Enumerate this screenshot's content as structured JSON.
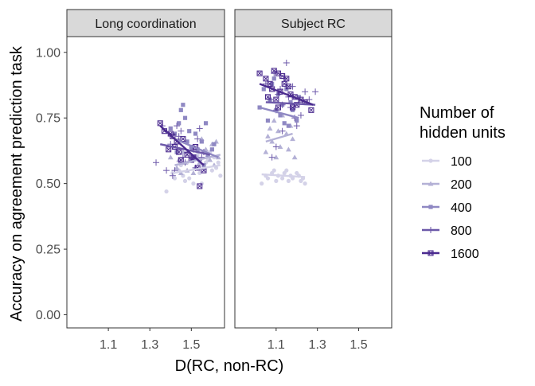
{
  "chart_data": {
    "type": "scatter",
    "ylabel": "Accuracy on agreement prediction task",
    "xlabel": "D(RC, non-RC)",
    "ylim": [
      -0.05,
      1.06
    ],
    "xlim": [
      0.9,
      1.66
    ],
    "yticks": [
      "0.00",
      "0.25",
      "0.50",
      "0.75",
      "1.00"
    ],
    "xticks": [
      "1.1",
      "1.3",
      "1.5"
    ],
    "grid": false,
    "legend_position": "right",
    "legend_title": [
      "Number of",
      "hidden units"
    ],
    "series_meta": [
      {
        "name": "100",
        "color": "#d4d2e8",
        "marker": "circle"
      },
      {
        "name": "200",
        "color": "#b4b1d6",
        "marker": "triangle"
      },
      {
        "name": "400",
        "color": "#8f88c3",
        "marker": "square"
      },
      {
        "name": "800",
        "color": "#6c58a9",
        "marker": "plus"
      },
      {
        "name": "1600",
        "color": "#4b2b8f",
        "marker": "boxed-x"
      }
    ],
    "panels": [
      {
        "title": "Long coordination",
        "series": [
          {
            "name": "100",
            "points": [
              [
                1.38,
                0.47
              ],
              [
                1.42,
                0.52
              ],
              [
                1.44,
                0.55
              ],
              [
                1.45,
                0.57
              ],
              [
                1.46,
                0.53
              ],
              [
                1.48,
                0.58
              ],
              [
                1.49,
                0.52
              ],
              [
                1.51,
                0.5
              ],
              [
                1.52,
                0.56
              ],
              [
                1.54,
                0.54
              ],
              [
                1.55,
                0.5
              ],
              [
                1.57,
                0.58
              ],
              [
                1.58,
                0.59
              ],
              [
                1.6,
                0.55
              ],
              [
                1.61,
                0.6
              ],
              [
                1.62,
                0.56
              ],
              [
                1.64,
                0.53
              ],
              [
                1.41,
                0.54
              ],
              [
                1.53,
                0.61
              ],
              [
                1.5,
                0.59
              ],
              [
                1.59,
                0.62
              ],
              [
                1.47,
                0.51
              ],
              [
                1.56,
                0.57
              ],
              [
                1.63,
                0.58
              ]
            ],
            "fit": [
              [
                1.41,
                0.54
              ],
              [
                1.64,
                0.57
              ]
            ]
          },
          {
            "name": "200",
            "points": [
              [
                1.4,
                0.6
              ],
              [
                1.43,
                0.56
              ],
              [
                1.45,
                0.54
              ],
              [
                1.46,
                0.62
              ],
              [
                1.48,
                0.55
              ],
              [
                1.5,
                0.59
              ],
              [
                1.51,
                0.54
              ],
              [
                1.53,
                0.6
              ],
              [
                1.54,
                0.58
              ],
              [
                1.56,
                0.56
              ],
              [
                1.57,
                0.63
              ],
              [
                1.58,
                0.61
              ],
              [
                1.6,
                0.65
              ],
              [
                1.61,
                0.57
              ],
              [
                1.62,
                0.66
              ],
              [
                1.63,
                0.6
              ],
              [
                1.55,
                0.67
              ],
              [
                1.59,
                0.59
              ],
              [
                1.47,
                0.58
              ],
              [
                1.44,
                0.59
              ]
            ],
            "fit": [
              [
                1.42,
                0.57
              ],
              [
                1.64,
                0.61
              ]
            ]
          },
          {
            "name": "400",
            "points": [
              [
                1.4,
                0.71
              ],
              [
                1.42,
                0.69
              ],
              [
                1.44,
                0.73
              ],
              [
                1.45,
                0.78
              ],
              [
                1.47,
                0.75
              ],
              [
                1.48,
                0.66
              ],
              [
                1.49,
                0.7
              ],
              [
                1.5,
                0.64
              ],
              [
                1.51,
                0.6
              ],
              [
                1.52,
                0.69
              ],
              [
                1.53,
                0.63
              ],
              [
                1.54,
                0.59
              ],
              [
                1.55,
                0.66
              ],
              [
                1.57,
                0.73
              ],
              [
                1.58,
                0.61
              ],
              [
                1.6,
                0.63
              ],
              [
                1.61,
                0.65
              ],
              [
                1.46,
                0.8
              ],
              [
                1.43,
                0.62
              ],
              [
                1.56,
                0.57
              ]
            ],
            "fit": [
              [
                1.42,
                0.67
              ],
              [
                1.63,
                0.6
              ]
            ]
          },
          {
            "name": "800",
            "points": [
              [
                1.33,
                0.58
              ],
              [
                1.36,
                0.72
              ],
              [
                1.38,
                0.55
              ],
              [
                1.4,
                0.65
              ],
              [
                1.42,
                0.55
              ],
              [
                1.43,
                0.72
              ],
              [
                1.44,
                0.68
              ],
              [
                1.46,
                0.6
              ],
              [
                1.47,
                0.58
              ],
              [
                1.48,
                0.62
              ],
              [
                1.5,
                0.6
              ],
              [
                1.52,
                0.56
              ],
              [
                1.53,
                0.67
              ],
              [
                1.54,
                0.71
              ],
              [
                1.55,
                0.6
              ],
              [
                1.56,
                0.62
              ],
              [
                1.45,
                0.7
              ],
              [
                1.41,
                0.53
              ],
              [
                1.51,
                0.63
              ]
            ],
            "fit": [
              [
                1.35,
                0.65
              ],
              [
                1.59,
                0.61
              ]
            ]
          },
          {
            "name": "1600",
            "points": [
              [
                1.35,
                0.73
              ],
              [
                1.37,
                0.7
              ],
              [
                1.39,
                0.63
              ],
              [
                1.4,
                0.69
              ],
              [
                1.42,
                0.64
              ],
              [
                1.43,
                0.66
              ],
              [
                1.44,
                0.62
              ],
              [
                1.46,
                0.67
              ],
              [
                1.48,
                0.61
              ],
              [
                1.5,
                0.59
              ],
              [
                1.51,
                0.6
              ],
              [
                1.53,
                0.56
              ],
              [
                1.54,
                0.49
              ],
              [
                1.56,
                0.55
              ],
              [
                1.45,
                0.59
              ],
              [
                1.41,
                0.68
              ],
              [
                1.52,
                0.64
              ]
            ],
            "fit": [
              [
                1.35,
                0.72
              ],
              [
                1.56,
                0.57
              ]
            ]
          }
        ]
      },
      {
        "title": "Subject RC",
        "series": [
          {
            "name": "100",
            "points": [
              [
                1.03,
                0.5
              ],
              [
                1.05,
                0.53
              ],
              [
                1.06,
                0.52
              ],
              [
                1.08,
                0.54
              ],
              [
                1.1,
                0.51
              ],
              [
                1.11,
                0.53
              ],
              [
                1.13,
                0.52
              ],
              [
                1.14,
                0.54
              ],
              [
                1.16,
                0.51
              ],
              [
                1.17,
                0.53
              ],
              [
                1.18,
                0.52
              ],
              [
                1.2,
                0.54
              ],
              [
                1.21,
                0.53
              ],
              [
                1.22,
                0.51
              ],
              [
                1.23,
                0.52
              ],
              [
                1.24,
                0.5
              ],
              [
                1.09,
                0.55
              ],
              [
                1.15,
                0.55
              ]
            ],
            "fit": [
              [
                1.03,
                0.535
              ],
              [
                1.24,
                0.525
              ]
            ]
          },
          {
            "name": "200",
            "points": [
              [
                1.05,
                0.62
              ],
              [
                1.06,
                0.68
              ],
              [
                1.08,
                0.66
              ],
              [
                1.09,
                0.74
              ],
              [
                1.1,
                0.6
              ],
              [
                1.11,
                0.7
              ],
              [
                1.12,
                0.64
              ],
              [
                1.13,
                0.76
              ],
              [
                1.15,
                0.69
              ],
              [
                1.16,
                0.63
              ],
              [
                1.17,
                0.72
              ],
              [
                1.18,
                0.67
              ],
              [
                1.19,
                0.6
              ],
              [
                1.07,
                0.71
              ]
            ],
            "fit": [
              [
                1.05,
                0.66
              ],
              [
                1.18,
                0.69
              ]
            ]
          },
          {
            "name": "400",
            "points": [
              [
                1.02,
                0.79
              ],
              [
                1.04,
                0.86
              ],
              [
                1.06,
                0.74
              ],
              [
                1.07,
                0.82
              ],
              [
                1.08,
                0.88
              ],
              [
                1.1,
                0.78
              ],
              [
                1.11,
                0.84
              ],
              [
                1.12,
                0.76
              ],
              [
                1.13,
                0.8
              ],
              [
                1.14,
                0.73
              ],
              [
                1.15,
                0.86
              ],
              [
                1.16,
                0.72
              ],
              [
                1.18,
                0.78
              ],
              [
                1.2,
                0.74
              ],
              [
                1.21,
                0.83
              ],
              [
                1.09,
                0.9
              ],
              [
                1.17,
                0.81
              ]
            ],
            "fit": [
              [
                1.02,
                0.79
              ],
              [
                1.21,
                0.75
              ]
            ]
          },
          {
            "name": "800",
            "points": [
              [
                1.05,
                0.88
              ],
              [
                1.07,
                0.82
              ],
              [
                1.08,
                0.6
              ],
              [
                1.09,
                0.92
              ],
              [
                1.1,
                0.78
              ],
              [
                1.11,
                0.84
              ],
              [
                1.12,
                0.86
              ],
              [
                1.13,
                0.8
              ],
              [
                1.14,
                0.9
              ],
              [
                1.15,
                0.96
              ],
              [
                1.16,
                0.83
              ],
              [
                1.17,
                0.79
              ],
              [
                1.18,
                0.87
              ],
              [
                1.19,
                0.75
              ],
              [
                1.2,
                0.72
              ],
              [
                1.22,
                0.76
              ],
              [
                1.24,
                0.85
              ],
              [
                1.26,
                0.82
              ],
              [
                1.29,
                0.85
              ],
              [
                1.1,
                0.64
              ],
              [
                1.13,
                0.7
              ]
            ],
            "fit": [
              [
                1.05,
                0.81
              ],
              [
                1.29,
                0.8
              ]
            ]
          },
          {
            "name": "1600",
            "points": [
              [
                1.02,
                0.92
              ],
              [
                1.05,
                0.9
              ],
              [
                1.07,
                0.88
              ],
              [
                1.08,
                0.86
              ],
              [
                1.09,
                0.93
              ],
              [
                1.1,
                0.82
              ],
              [
                1.11,
                0.92
              ],
              [
                1.12,
                0.85
              ],
              [
                1.13,
                0.91
              ],
              [
                1.14,
                0.88
              ],
              [
                1.15,
                0.9
              ],
              [
                1.16,
                0.87
              ],
              [
                1.17,
                0.84
              ],
              [
                1.18,
                0.79
              ],
              [
                1.19,
                0.83
              ],
              [
                1.2,
                0.8
              ],
              [
                1.22,
                0.82
              ],
              [
                1.24,
                0.81
              ],
              [
                1.27,
                0.78
              ],
              [
                1.06,
                0.83
              ],
              [
                1.11,
                0.79
              ]
            ],
            "fit": [
              [
                1.02,
                0.88
              ],
              [
                1.28,
                0.8
              ]
            ]
          }
        ]
      }
    ]
  }
}
